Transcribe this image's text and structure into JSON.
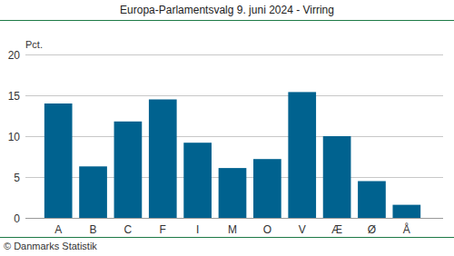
{
  "chart_data": {
    "type": "bar",
    "title": "Europa-Parlamentsvalg 9. juni 2024 - Virring",
    "ylabel": "Pct.",
    "source": "© Danmarks Statistik",
    "categories": [
      "A",
      "B",
      "C",
      "F",
      "I",
      "M",
      "O",
      "V",
      "Æ",
      "Ø",
      "Å"
    ],
    "values": [
      14.0,
      6.3,
      11.8,
      14.5,
      9.2,
      6.1,
      7.2,
      15.4,
      10.0,
      4.5,
      1.6
    ],
    "color": "#00628f",
    "ylim": [
      0,
      20
    ],
    "yticks": [
      0,
      5,
      10,
      15,
      20
    ],
    "grid": true
  }
}
